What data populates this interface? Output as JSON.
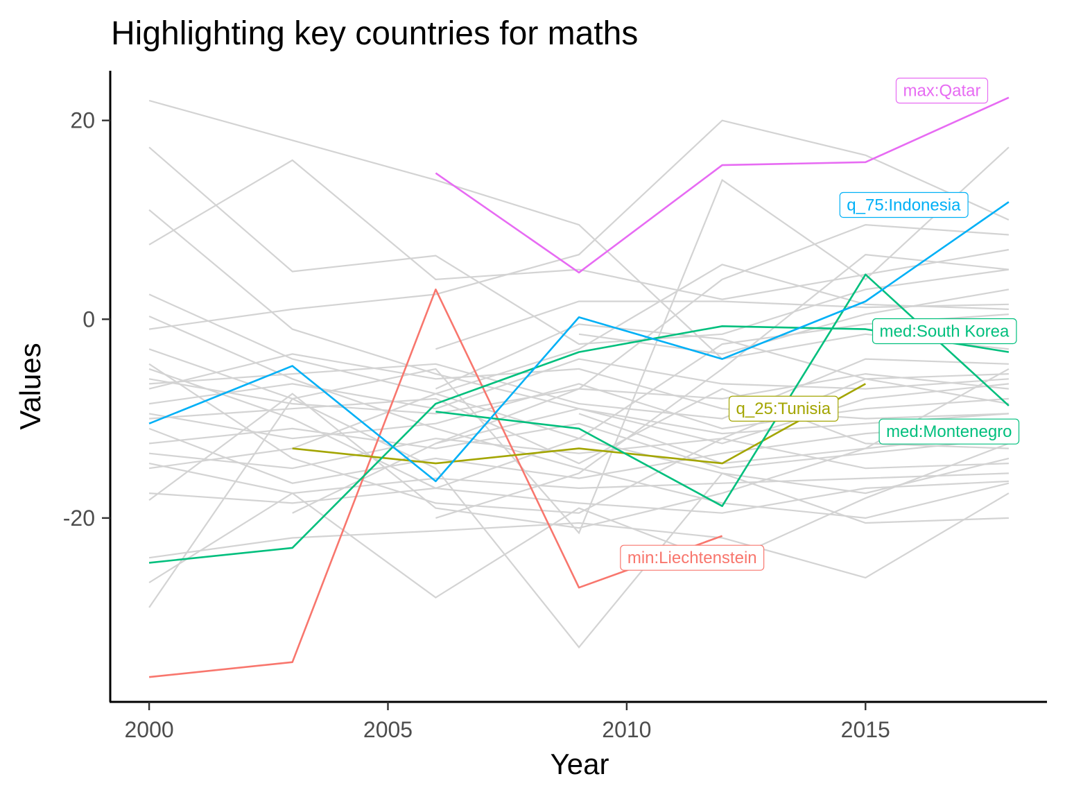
{
  "chart_data": {
    "type": "line",
    "title": "Highlighting key countries for maths",
    "xlabel": "Year",
    "ylabel": "Values",
    "xlim": [
      1999.2,
      2018.8
    ],
    "ylim": [
      -38.5,
      25
    ],
    "xticks": [
      2000,
      2005,
      2010,
      2015
    ],
    "yticks": [
      -20,
      0,
      20
    ],
    "ytick_labels": [
      "-20",
      "0",
      "20"
    ],
    "grid": false,
    "legend": "none",
    "background_color": "#d3d3d3",
    "background_series": [
      {
        "x": [
          2000,
          2003,
          2006,
          2009,
          2012,
          2015,
          2018
        ],
        "values": [
          22.0,
          18.0,
          14.0,
          9.5,
          -4.0,
          -1.5,
          -3.0
        ]
      },
      {
        "x": [
          2000,
          2003,
          2006,
          2009,
          2012,
          2015,
          2018
        ],
        "values": [
          17.3,
          4.8,
          6.4,
          -2.5,
          -1.5,
          3.0,
          5.0
        ]
      },
      {
        "x": [
          2000,
          2003,
          2006,
          2009,
          2012,
          2015,
          2018
        ],
        "values": [
          7.5,
          16.0,
          4.0,
          5.0,
          2.0,
          4.5,
          7.0
        ]
      },
      {
        "x": [
          2000,
          2003,
          2006,
          2009,
          2012,
          2015,
          2018
        ],
        "values": [
          11.0,
          -1.0,
          -5.5,
          -9.0,
          -12.5,
          -8.0,
          -6.5
        ]
      },
      {
        "x": [
          2000,
          2003,
          2006,
          2009,
          2012,
          2015,
          2018
        ],
        "values": [
          2.5,
          -4.0,
          -7.5,
          -12.0,
          -15.5,
          -17.5,
          -14.0
        ]
      },
      {
        "x": [
          2000,
          2003,
          2006,
          2009,
          2012,
          2015,
          2018
        ],
        "values": [
          0.3,
          -6.0,
          -11.0,
          -15.0,
          -18.5,
          -20.0,
          -16.5
        ]
      },
      {
        "x": [
          2000,
          2003,
          2006,
          2009,
          2012,
          2015,
          2018
        ],
        "values": [
          -1.0,
          1.0,
          2.5,
          6.5,
          20.0,
          16.5,
          10.0
        ]
      },
      {
        "x": [
          2000,
          2003,
          2006,
          2009,
          2012,
          2015,
          2018
        ],
        "values": [
          -3.0,
          -8.0,
          -5.0,
          -21.5,
          14.0,
          4.0,
          17.3
        ]
      },
      {
        "x": [
          2000,
          2003,
          2006,
          2009,
          2012,
          2015,
          2018
        ],
        "values": [
          -5.0,
          -10.0,
          -17.0,
          -12.0,
          -2.5,
          -0.5,
          0.5
        ]
      },
      {
        "x": [
          2000,
          2003,
          2006,
          2009,
          2012,
          2015,
          2018
        ],
        "values": [
          -6.0,
          -8.5,
          -9.5,
          -7.0,
          -8.0,
          -5.5,
          -7.0
        ]
      },
      {
        "x": [
          2000,
          2003,
          2006,
          2009,
          2012,
          2015,
          2018
        ],
        "values": [
          -7.0,
          -3.5,
          -6.0,
          -5.0,
          -9.0,
          -10.0,
          -9.5
        ]
      },
      {
        "x": [
          2000,
          2003,
          2006,
          2009,
          2012,
          2015,
          2018
        ],
        "values": [
          -8.5,
          -6.5,
          -9.0,
          -4.0,
          -6.5,
          -7.0,
          -6.0
        ]
      },
      {
        "x": [
          2000,
          2003,
          2006,
          2009,
          2012,
          2015,
          2018
        ],
        "values": [
          -9.5,
          -12.0,
          -10.5,
          -6.5,
          -11.0,
          -9.0,
          -8.0
        ]
      },
      {
        "x": [
          2000,
          2003,
          2006,
          2009,
          2012,
          2015,
          2018
        ],
        "values": [
          -11.0,
          -16.5,
          -14.0,
          -16.0,
          -13.5,
          -11.5,
          -10.5
        ]
      },
      {
        "x": [
          2000,
          2003,
          2006,
          2009,
          2012,
          2015,
          2018
        ],
        "values": [
          -12.5,
          -11.0,
          -13.0,
          -10.5,
          -15.0,
          -13.5,
          -12.0
        ]
      },
      {
        "x": [
          2000,
          2003,
          2006,
          2009,
          2012,
          2015,
          2018
        ],
        "values": [
          -13.5,
          -15.0,
          -12.0,
          -13.5,
          -12.0,
          -15.0,
          -14.5
        ]
      },
      {
        "x": [
          2000,
          2003,
          2006,
          2009,
          2012,
          2015,
          2018
        ],
        "values": [
          -14.5,
          -17.5,
          -16.0,
          -17.0,
          -16.5,
          -16.0,
          -15.5
        ]
      },
      {
        "x": [
          2000,
          2003,
          2006,
          2009,
          2012,
          2015,
          2018
        ],
        "values": [
          -17.5,
          -18.5,
          -17.0,
          -18.5,
          -19.5,
          -17.0,
          -16.3
        ]
      },
      {
        "x": [
          2000,
          2003,
          2006,
          2009,
          2012,
          2015,
          2018
        ],
        "values": [
          -18.2,
          -7.5,
          -19.0,
          -21.0,
          -17.5,
          -13.0,
          -11.5
        ]
      },
      {
        "x": [
          2000,
          2003,
          2006,
          2009,
          2012,
          2015,
          2018
        ],
        "values": [
          -24.0,
          -22.0,
          -21.3,
          -20.5,
          -22.0,
          -26.0,
          -17.5
        ]
      },
      {
        "x": [
          2000,
          2003,
          2006,
          2009,
          2012,
          2015,
          2018
        ],
        "values": [
          -26.5,
          -17.5,
          -28.0,
          -19.0,
          -24.5,
          -18.0,
          -12.5
        ]
      },
      {
        "x": [
          2000,
          2003,
          2006,
          2009,
          2012,
          2015,
          2018
        ],
        "values": [
          -29.0,
          -8.0,
          -15.0,
          -33.0,
          -15.5,
          -20.5,
          -20.0
        ]
      },
      {
        "x": [
          2000,
          2003,
          2006,
          2009,
          2012,
          2015,
          2018
        ],
        "values": [
          -4.5,
          -14.0,
          -18.5,
          -19.5,
          -12.0,
          -6.0,
          -5.5
        ]
      },
      {
        "x": [
          2000,
          2003,
          2006,
          2009,
          2012,
          2015,
          2018
        ],
        "values": [
          -15.0,
          -13.0,
          -7.5,
          -3.0,
          5.5,
          1.5,
          1.0
        ]
      },
      {
        "x": [
          2000,
          2003,
          2006,
          2009,
          2012,
          2015,
          2018
        ],
        "values": [
          -6.5,
          -5.5,
          -4.5,
          -8.5,
          -10.0,
          -4.0,
          -4.5
        ]
      },
      {
        "x": [
          2000,
          2003,
          2006,
          2009,
          2012,
          2015,
          2018
        ],
        "values": [
          -10.0,
          -9.0,
          -8.0,
          -14.5,
          -7.0,
          -12.5,
          -13.0
        ]
      },
      {
        "x": [
          2006,
          2009,
          2012,
          2015,
          2018
        ],
        "values": [
          -3.0,
          1.8,
          1.8,
          1.2,
          1.5
        ]
      },
      {
        "x": [
          2006,
          2009,
          2012,
          2015,
          2018
        ],
        "values": [
          -12.5,
          -7.0,
          4.0,
          9.5,
          8.5
        ]
      },
      {
        "x": [
          2006,
          2009,
          2012,
          2015,
          2018
        ],
        "values": [
          -20.0,
          -15.5,
          -5.0,
          6.5,
          5.0
        ]
      },
      {
        "x": [
          2006,
          2009,
          2012,
          2015,
          2018
        ],
        "values": [
          -7.0,
          -0.5,
          -2.0,
          -6.0,
          -8.5
        ]
      },
      {
        "x": [
          2009,
          2012,
          2015,
          2018
        ],
        "values": [
          -1.5,
          -3.5,
          0.5,
          3.0
        ]
      },
      {
        "x": [
          2009,
          2012,
          2015,
          2018
        ],
        "values": [
          -9.5,
          -14.5,
          -13.0,
          -5.0
        ]
      },
      {
        "x": [
          2003,
          2006,
          2009,
          2012,
          2015,
          2018
        ],
        "values": [
          -19.5,
          -12.5,
          -9.0,
          -11.5,
          -10.5,
          -9.5
        ]
      }
    ],
    "series": [
      {
        "x": [
          2000,
          2003,
          2006,
          2009,
          2012
        ],
        "values": [
          -36.0,
          -34.5,
          3.0,
          -27.0,
          -21.8
        ],
        "color": "#F8766D"
      },
      {
        "x": [
          2003,
          2006,
          2009,
          2012,
          2015
        ],
        "values": [
          -13.0,
          -14.5,
          -13.0,
          -14.5,
          -6.5
        ],
        "color": "#A3A500"
      },
      {
        "x": [
          2000,
          2003,
          2006,
          2009,
          2012,
          2015,
          2018
        ],
        "values": [
          -24.5,
          -23.0,
          -8.5,
          -3.3,
          -0.7,
          -1.0,
          -3.3
        ],
        "color": "#00BF7D"
      },
      {
        "x": [
          2006,
          2009,
          2012,
          2015,
          2018
        ],
        "values": [
          -9.3,
          -11.0,
          -18.8,
          4.5,
          -8.7
        ],
        "color": "#00BF7D"
      },
      {
        "x": [
          2000,
          2003,
          2006,
          2009,
          2012,
          2015,
          2018
        ],
        "values": [
          -10.5,
          -4.7,
          -16.3,
          0.2,
          -4.0,
          1.8,
          11.8
        ],
        "color": "#00B0F6"
      },
      {
        "x": [
          2006,
          2009,
          2012,
          2015,
          2018
        ],
        "values": [
          14.7,
          4.7,
          15.5,
          15.8,
          22.3
        ],
        "color": "#E76BF3"
      }
    ],
    "labels": [
      {
        "text": "min:Liechtenstein",
        "x": 2011.37,
        "y": -24.0,
        "color": "#F8766D"
      },
      {
        "text": "q_25:Tunisia",
        "x": 2013.28,
        "y": -9.0,
        "color": "#A3A500"
      },
      {
        "text": "med:South Korea",
        "x": 2016.65,
        "y": -1.2,
        "color": "#00BF7D"
      },
      {
        "text": "med:Montenegro",
        "x": 2016.75,
        "y": -11.3,
        "color": "#00BF7D"
      },
      {
        "text": "q_75:Indonesia",
        "x": 2015.8,
        "y": 11.5,
        "color": "#00B0F6"
      },
      {
        "text": "max:Qatar",
        "x": 2016.6,
        "y": 23.0,
        "color": "#E76BF3"
      }
    ]
  }
}
